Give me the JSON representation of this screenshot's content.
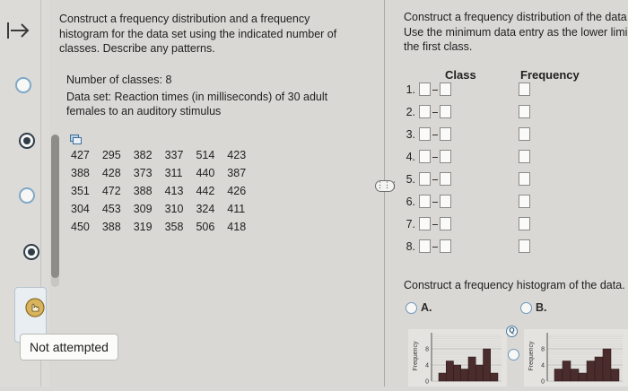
{
  "left_rail": {
    "icons": [
      "arrow-right-to-bar-icon",
      "radio-empty-icon",
      "radio-filled-icon",
      "radio-empty-icon",
      "radio-filled-icon",
      "hand-pointer-icon"
    ],
    "status_label": "Not attempted"
  },
  "question": {
    "prompt": "Construct a frequency distribution and a frequency histogram for the data set using the indicated number of classes. Describe any patterns.",
    "classes_line": "Number of classes: 8",
    "dataset_line": "Data set: Reaction times (in milliseconds) of 30 adult females to an auditory stimulus",
    "data_rows": [
      [
        "427",
        "295",
        "382",
        "337",
        "514",
        "423"
      ],
      [
        "388",
        "428",
        "373",
        "311",
        "440",
        "387"
      ],
      [
        "351",
        "472",
        "388",
        "413",
        "442",
        "426"
      ],
      [
        "304",
        "453",
        "309",
        "310",
        "324",
        "411"
      ],
      [
        "450",
        "388",
        "319",
        "358",
        "506",
        "418"
      ]
    ]
  },
  "answer": {
    "instruction": "Construct a frequency distribution of the data Use the minimum data entry as the lower limi the first class.",
    "instruction_lines": [
      "Construct a frequency distribution of the data",
      "Use the minimum data entry as the lower limi",
      "the first class."
    ],
    "class_header": "Class",
    "frequency_header": "Frequency",
    "rows": [
      "1.",
      "2.",
      "3.",
      "4.",
      "5.",
      "6.",
      "7.",
      "8."
    ],
    "histogram_prompt": "Construct a frequency histogram of the data.",
    "options": [
      "A.",
      "B."
    ],
    "chart_axis_label": "Frequency",
    "chart_ticks": [
      "8",
      "4",
      "0"
    ]
  },
  "chart_data": [
    {
      "type": "bar",
      "ylabel": "Frequency",
      "ylim": [
        0,
        10
      ],
      "ticks": [
        0,
        4,
        8
      ],
      "values": [
        2,
        5,
        4,
        3,
        6,
        4,
        8,
        2
      ]
    },
    {
      "type": "bar",
      "ylabel": "Frequency",
      "ylim": [
        0,
        10
      ],
      "ticks": [
        0,
        4,
        8
      ],
      "values": [
        3,
        5,
        3,
        2,
        5,
        6,
        8,
        3
      ]
    }
  ]
}
